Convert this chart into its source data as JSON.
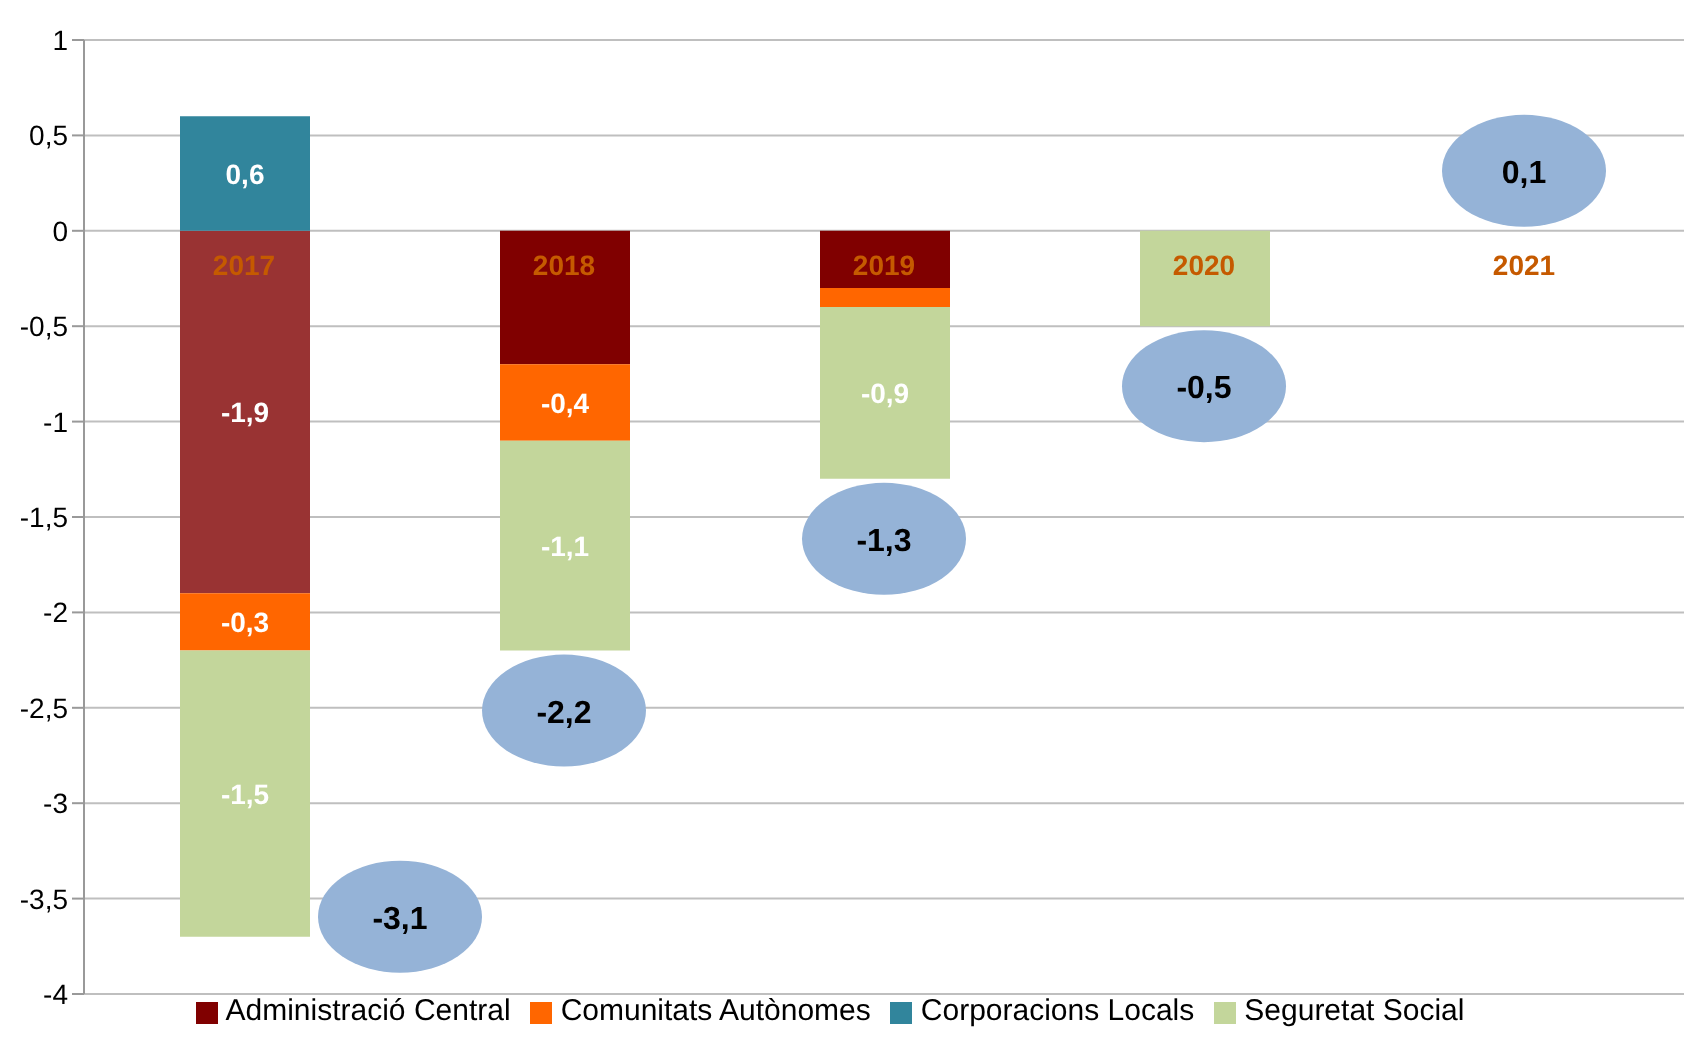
{
  "chart_data": {
    "type": "bar",
    "stacked": true,
    "categories": [
      "2017",
      "2018",
      "2019",
      "2020",
      "2021"
    ],
    "series": [
      {
        "name": "Administració Central",
        "color": "#800000",
        "colors": [
          "#993333",
          "#800000",
          "#800000",
          "#800000",
          "#800000"
        ],
        "values": [
          -1.9,
          -0.7,
          -0.3,
          0,
          0
        ],
        "value_labels": [
          "-1,9",
          null,
          null,
          null,
          null
        ]
      },
      {
        "name": "Comunitats Autònomes",
        "color": "#ff6600",
        "values": [
          -0.3,
          -0.4,
          -0.1,
          0,
          0
        ],
        "value_labels": [
          "-0,3",
          "-0,4",
          null,
          null,
          null
        ]
      },
      {
        "name": "Corporacions Locals",
        "color": "#31859c",
        "values": [
          0.6,
          0,
          0,
          0,
          0
        ],
        "value_labels": [
          "0,6",
          null,
          null,
          null,
          null
        ]
      },
      {
        "name": "Seguretat Social",
        "color": "#c3d69b",
        "values": [
          -1.5,
          -1.1,
          -0.9,
          -0.5,
          0
        ],
        "value_labels": [
          "-1,5",
          "-1,1",
          "-0,9",
          null,
          null
        ]
      }
    ],
    "totals": [
      "-3,1",
      "-2,2",
      "-1,3",
      "-0,5",
      "0,1"
    ],
    "ylim": [
      -4,
      1
    ],
    "yticks": [
      -4,
      {
        "value": -3.5,
        "label": "-3,5"
      },
      -3,
      {
        "value": -2.5,
        "label": "-2,5"
      },
      -2,
      {
        "value": -1.5,
        "label": "-1,5"
      },
      -1,
      {
        "value": -0.5,
        "label": "-0,5"
      },
      0,
      {
        "value": 0.5,
        "label": "0,5"
      },
      1
    ],
    "grid": "y",
    "legend": "bottom"
  }
}
